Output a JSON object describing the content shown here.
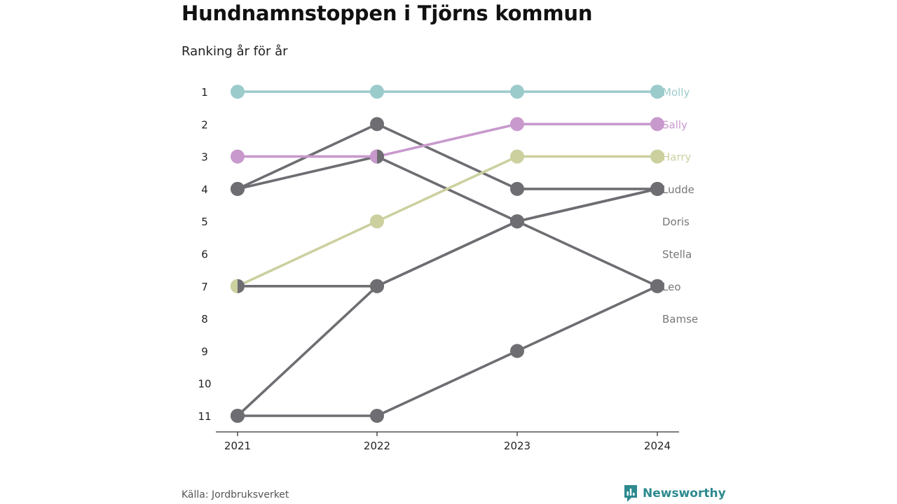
{
  "title": "Hundnamnstoppen i Tjörns kommun",
  "subtitle": "Ranking år för år",
  "source": "Källa: Jordbruksverket",
  "brand": {
    "name": "Newsworthy",
    "icon": "newsworthy-logo-icon",
    "color": "#2d8a8f"
  },
  "colors": {
    "Molly": "#9ccbcc",
    "Sally": "#c899cc",
    "Harry": "#ccd09f",
    "other": "#6d6d72",
    "axis": "#333333",
    "label_other": "#777777"
  },
  "chart_data": {
    "type": "line",
    "subtype": "bump",
    "title": "Hundnamnstoppen i Tjörns kommun",
    "subtitle": "Ranking år för år",
    "x": [
      "2021",
      "2022",
      "2023",
      "2024"
    ],
    "y_ticks": [
      "1",
      "2",
      "3",
      "4",
      "5",
      "6",
      "7",
      "8",
      "9",
      "10",
      "11"
    ],
    "ylim": [
      1,
      11
    ],
    "y_inverted": true,
    "legend": "end-labels",
    "series": [
      {
        "name": "Bamse",
        "values": [
          11,
          7,
          5,
          4
        ],
        "color_key": "other"
      },
      {
        "name": "Stella",
        "values": [
          4,
          2,
          4,
          4
        ],
        "color_key": "other"
      },
      {
        "name": "Doris",
        "values": [
          7,
          7,
          5,
          4
        ],
        "color_key": "other"
      },
      {
        "name": "Leo",
        "values": [
          11,
          11,
          9,
          7
        ],
        "color_key": "other"
      },
      {
        "name": "Ludde",
        "values": [
          4,
          3,
          5,
          7
        ],
        "color_key": "other"
      },
      {
        "name": "Harry",
        "values": [
          7,
          5,
          3,
          3
        ],
        "color_key": "Harry"
      },
      {
        "name": "Sally",
        "values": [
          3,
          3,
          2,
          2
        ],
        "color_key": "Sally"
      },
      {
        "name": "Molly",
        "values": [
          1,
          1,
          1,
          1
        ],
        "color_key": "Molly"
      }
    ],
    "end_labels": [
      {
        "name": "Molly",
        "rank": 1,
        "color_key": "Molly"
      },
      {
        "name": "Sally",
        "rank": 2,
        "color_key": "Sally"
      },
      {
        "name": "Harry",
        "rank": 3,
        "color_key": "Harry"
      },
      {
        "name": "Ludde",
        "rank": 4,
        "color_key": "label_other"
      },
      {
        "name": "Doris",
        "rank": 5,
        "color_key": "label_other"
      },
      {
        "name": "Stella",
        "rank": 6,
        "color_key": "label_other"
      },
      {
        "name": "Leo",
        "rank": 7,
        "color_key": "label_other"
      },
      {
        "name": "Bamse",
        "rank": 8,
        "color_key": "label_other"
      }
    ],
    "split_markers": [
      {
        "x": "2021",
        "rank": 7,
        "left_color_key": "Harry",
        "right_color_key": "other"
      },
      {
        "x": "2022",
        "rank": 3,
        "left_color_key": "Sally",
        "right_color_key": "other"
      }
    ]
  }
}
